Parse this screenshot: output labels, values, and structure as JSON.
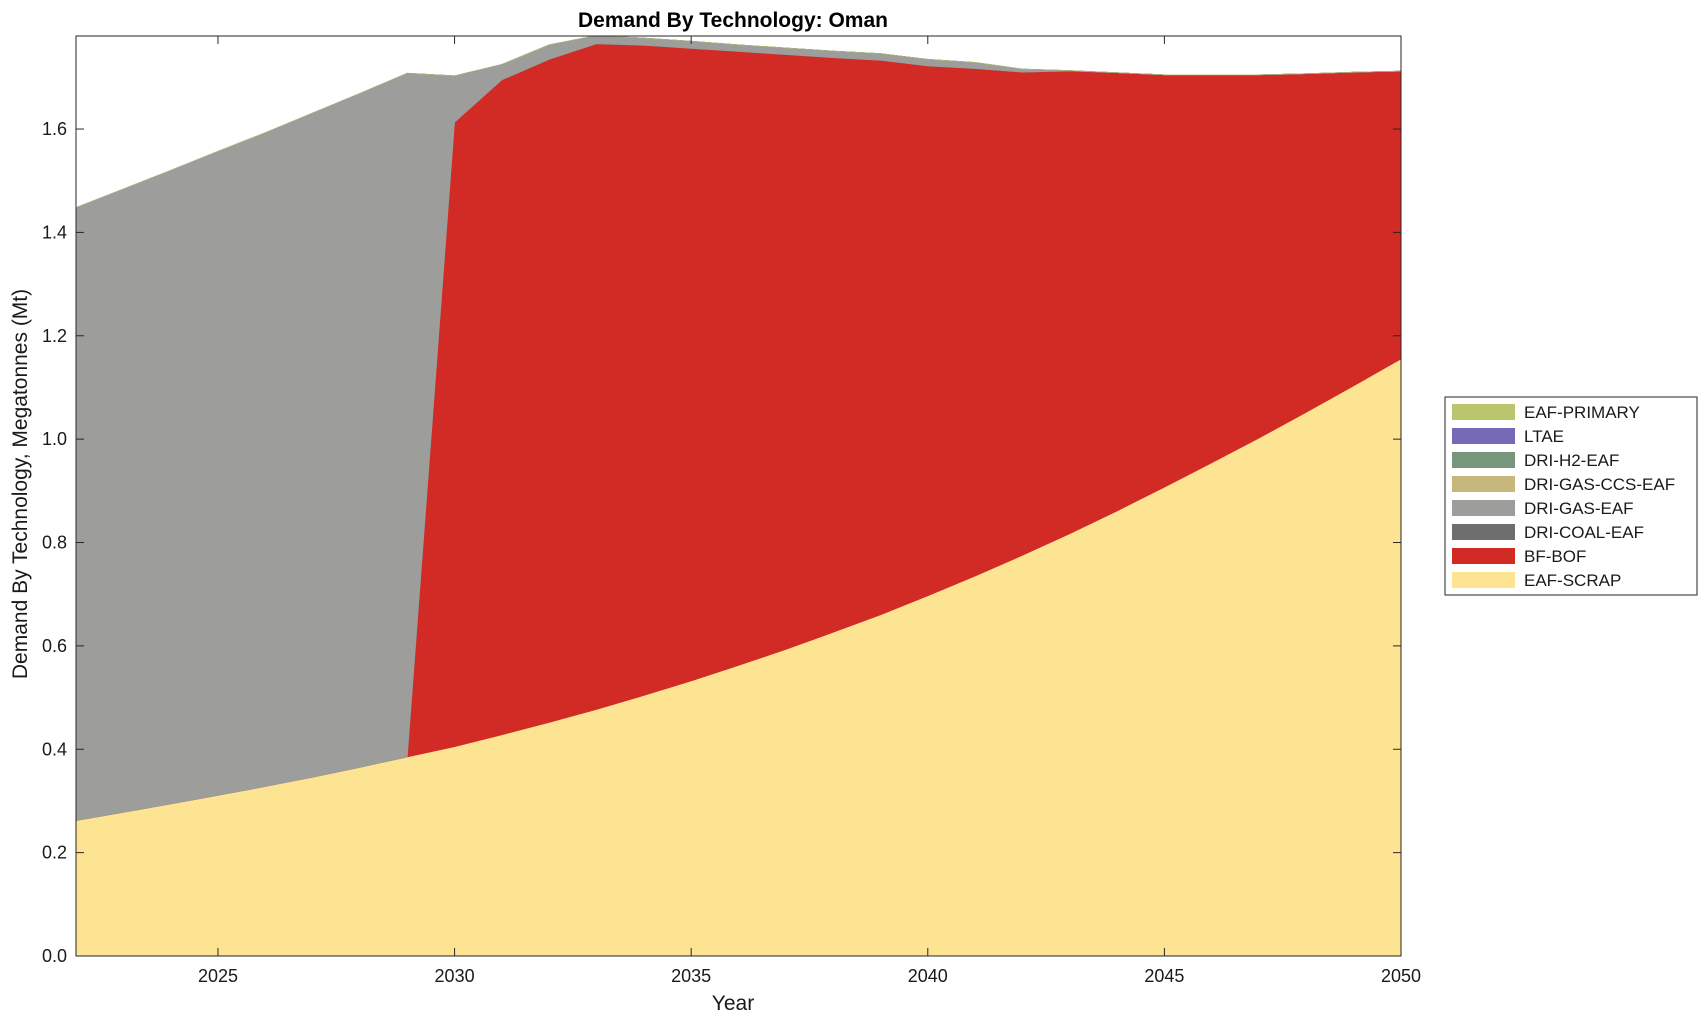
{
  "chart_data": {
    "type": "area",
    "stacked": true,
    "title": "Demand By Technology: Oman",
    "xlabel": "Year",
    "ylabel": "Demand By Technology, Megatonnes (Mt)",
    "xlim": [
      2022,
      2050
    ],
    "ylim": [
      0,
      1.78
    ],
    "x_ticks": [
      2025,
      2030,
      2035,
      2040,
      2045,
      2050
    ],
    "y_ticks": [
      0.0,
      0.2,
      0.4,
      0.6,
      0.8,
      1.0,
      1.2,
      1.4,
      1.6
    ],
    "y_tick_labels": [
      "0.0",
      "0.2",
      "0.4",
      "0.6",
      "0.8",
      "1.0",
      "1.2",
      "1.4",
      "1.6"
    ],
    "grid": false,
    "legend_position": "right",
    "x": [
      2022,
      2023,
      2024,
      2025,
      2026,
      2027,
      2028,
      2029,
      2030,
      2031,
      2032,
      2033,
      2034,
      2035,
      2036,
      2037,
      2038,
      2039,
      2040,
      2041,
      2042,
      2043,
      2044,
      2045,
      2046,
      2047,
      2048,
      2049,
      2050
    ],
    "series": [
      {
        "name": "EAF-SCRAP",
        "color": "#FDE493",
        "values": [
          0.262,
          0.278,
          0.294,
          0.311,
          0.328,
          0.346,
          0.365,
          0.385,
          0.405,
          0.428,
          0.452,
          0.477,
          0.504,
          0.532,
          0.562,
          0.593,
          0.626,
          0.66,
          0.697,
          0.735,
          0.775,
          0.817,
          0.861,
          0.907,
          0.954,
          1.002,
          1.052,
          1.103,
          1.155
        ]
      },
      {
        "name": "BF-BOF",
        "color": "#D22A24",
        "values": [
          0,
          0,
          0,
          0,
          0,
          0,
          0,
          0,
          1.208,
          1.267,
          1.283,
          1.288,
          1.258,
          1.224,
          1.188,
          1.151,
          1.112,
          1.073,
          1.025,
          0.982,
          0.935,
          0.895,
          0.848,
          0.798,
          0.751,
          0.703,
          0.655,
          0.607,
          0.557
        ]
      },
      {
        "name": "DRI-COAL-EAF",
        "color": "#6E6E6E",
        "values": [
          0,
          0,
          0,
          0,
          0,
          0,
          0,
          0,
          0,
          0,
          0,
          0,
          0,
          0,
          0,
          0,
          0,
          0,
          0,
          0,
          0,
          0,
          0,
          0,
          0,
          0,
          0,
          0,
          0
        ]
      },
      {
        "name": "DRI-GAS-EAF",
        "color": "#9D9D9B",
        "values": [
          1.186,
          1.206,
          1.226,
          1.246,
          1.265,
          1.285,
          1.304,
          1.323,
          0.09,
          0.03,
          0.028,
          0.016,
          0.014,
          0.014,
          0.013,
          0.013,
          0.013,
          0.013,
          0.013,
          0.012,
          0.006,
          0.001,
          0,
          0,
          0,
          0,
          0,
          0,
          0
        ]
      },
      {
        "name": "DRI-GAS-CCS-EAF",
        "color": "#C6B87C",
        "values": [
          0,
          0,
          0,
          0,
          0,
          0,
          0,
          0,
          0,
          0,
          0,
          0,
          0,
          0,
          0,
          0,
          0,
          0,
          0,
          0,
          0,
          0,
          0,
          0,
          0,
          0,
          0,
          0,
          0
        ]
      },
      {
        "name": "DRI-H2-EAF",
        "color": "#77967B",
        "values": [
          0,
          0,
          0,
          0,
          0,
          0,
          0,
          0,
          0,
          0,
          0,
          0,
          0,
          0,
          0,
          0,
          0,
          0,
          0,
          0,
          0,
          0,
          0,
          0,
          0,
          0,
          0,
          0,
          0
        ]
      },
      {
        "name": "LTAE",
        "color": "#7569B8",
        "values": [
          0,
          0,
          0,
          0,
          0,
          0,
          0,
          0,
          0,
          0,
          0,
          0,
          0,
          0,
          0,
          0,
          0,
          0,
          0,
          0,
          0,
          0,
          0,
          0,
          0,
          0,
          0,
          0,
          0
        ]
      },
      {
        "name": "EAF-PRIMARY",
        "color": "#BAC56D",
        "values": [
          0,
          0,
          0,
          0,
          0,
          0,
          0,
          0,
          0,
          0,
          0,
          0,
          0,
          0,
          0,
          0,
          0,
          0,
          0,
          0,
          0,
          0,
          0,
          0,
          0,
          0,
          0,
          0,
          0
        ]
      }
    ],
    "legend_order": [
      "EAF-PRIMARY",
      "LTAE",
      "DRI-H2-EAF",
      "DRI-GAS-CCS-EAF",
      "DRI-GAS-EAF",
      "DRI-COAL-EAF",
      "BF-BOF",
      "EAF-SCRAP"
    ]
  }
}
